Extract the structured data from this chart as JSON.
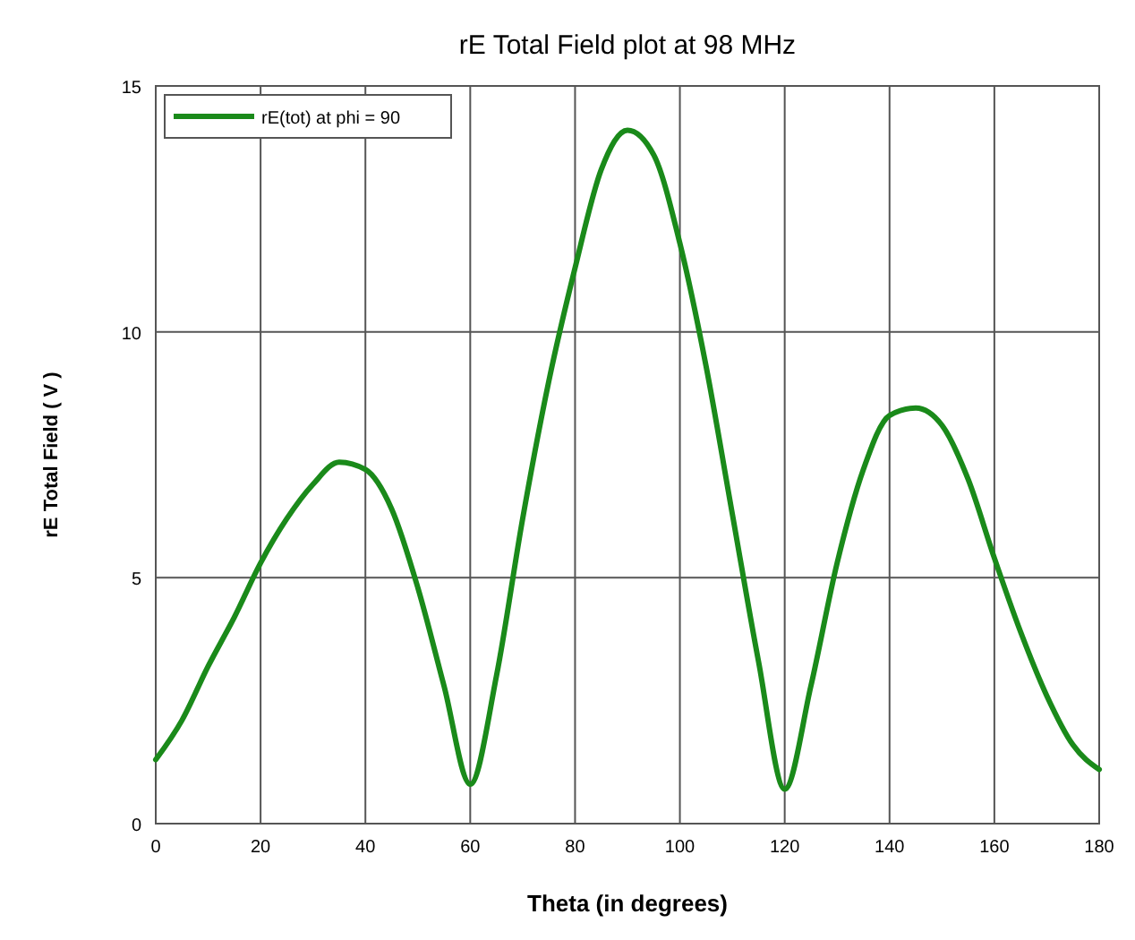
{
  "chart_data": {
    "type": "line",
    "title": "rE Total Field plot at 98 MHz",
    "xlabel": "Theta (in degrees)",
    "ylabel": "rE Total Field ( V )",
    "xlim": [
      0,
      180
    ],
    "xticks": [
      0,
      20,
      40,
      60,
      80,
      100,
      120,
      140,
      160,
      180
    ],
    "ylim": [
      0,
      15
    ],
    "yticks": [
      0,
      5,
      10,
      15
    ],
    "grid": true,
    "legend": "top left",
    "line_style": "solid",
    "marker": "none",
    "series": [
      {
        "name": "rE(tot) at phi = 90",
        "color": "#1a8a1a",
        "x": [
          0,
          5,
          10,
          15,
          20,
          25,
          30,
          35,
          40,
          45,
          50,
          55,
          60,
          65,
          70,
          75,
          80,
          85,
          90,
          95,
          100,
          105,
          110,
          115,
          120,
          125,
          130,
          135,
          140,
          145,
          150,
          155,
          160,
          165,
          170,
          175,
          180
        ],
        "values": [
          1.3,
          2.1,
          3.2,
          4.2,
          5.3,
          6.2,
          6.9,
          7.35,
          7.2,
          6.4,
          4.8,
          2.8,
          0.8,
          3.0,
          6.2,
          9.0,
          11.3,
          13.3,
          14.1,
          13.6,
          11.8,
          9.3,
          6.3,
          3.3,
          0.7,
          2.8,
          5.3,
          7.2,
          8.3,
          8.45,
          8.1,
          7.0,
          5.4,
          3.9,
          2.6,
          1.6,
          1.1
        ]
      }
    ]
  }
}
